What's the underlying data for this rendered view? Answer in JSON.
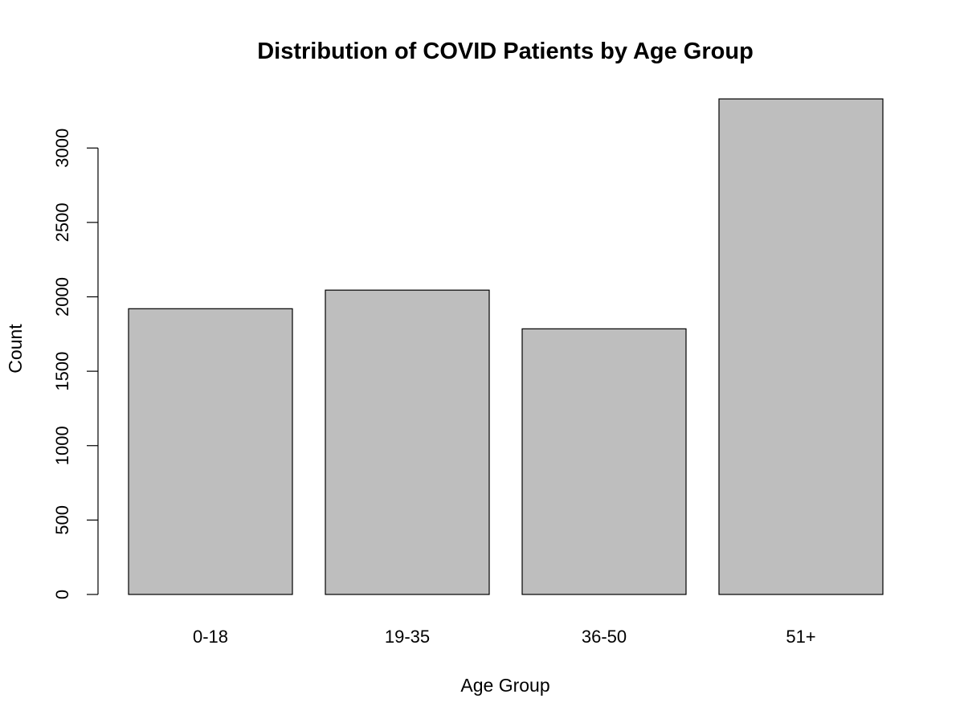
{
  "chart_data": {
    "type": "bar",
    "title": "Distribution of COVID Patients by Age Group",
    "xlabel": "Age Group",
    "ylabel": "Count",
    "categories": [
      "0-18",
      "19-35",
      "36-50",
      "51+"
    ],
    "values": [
      1920,
      2045,
      1785,
      3330
    ],
    "yticks": [
      0,
      500,
      1000,
      1500,
      2000,
      2500,
      3000
    ],
    "ylim": [
      0,
      3330
    ],
    "bar_color": "#bebebe",
    "bar_edge_color": "#000000",
    "grid": false,
    "legend": false
  }
}
